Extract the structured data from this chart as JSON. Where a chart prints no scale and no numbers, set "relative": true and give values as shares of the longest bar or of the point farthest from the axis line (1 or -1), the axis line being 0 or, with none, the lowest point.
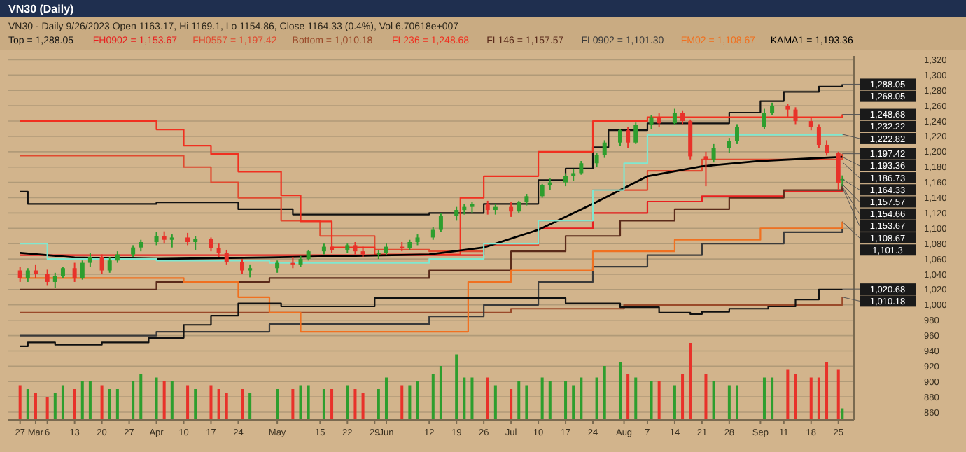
{
  "chart_data": [
    {
      "type": "candlestick",
      "title": "VN30 (Daily)",
      "subtitle": "VN30 - Daily 9/26/2023 Open 1163.17, Hi 1169.1, Lo 1154.86, Close 1164.33 (0.4%), Vol 6.70618e+007",
      "x": [
        "2023-02-27",
        "2023-03-01",
        "2023-03-03",
        "2023-03-06",
        "2023-03-08",
        "2023-03-10",
        "2023-03-13",
        "2023-03-15",
        "2023-03-17",
        "2023-03-20",
        "2023-03-22",
        "2023-03-24",
        "2023-03-28",
        "2023-03-30",
        "2023-04-03",
        "2023-04-05",
        "2023-04-07",
        "2023-04-11",
        "2023-04-13",
        "2023-04-17",
        "2023-04-19",
        "2023-04-21",
        "2023-04-25",
        "2023-04-27",
        "2023-05-04",
        "2023-05-08",
        "2023-05-10",
        "2023-05-12",
        "2023-05-16",
        "2023-05-18",
        "2023-05-22",
        "2023-05-24",
        "2023-05-26",
        "2023-05-30",
        "2023-06-01",
        "2023-06-05",
        "2023-06-07",
        "2023-06-09",
        "2023-06-13",
        "2023-06-15",
        "2023-06-19",
        "2023-06-21",
        "2023-06-23",
        "2023-06-27",
        "2023-06-29",
        "2023-07-03",
        "2023-07-05",
        "2023-07-07",
        "2023-07-11",
        "2023-07-13",
        "2023-07-17",
        "2023-07-19",
        "2023-07-21",
        "2023-07-25",
        "2023-07-27",
        "2023-07-31",
        "2023-08-02",
        "2023-08-04",
        "2023-08-08",
        "2023-08-10",
        "2023-08-14",
        "2023-08-16",
        "2023-08-18",
        "2023-08-22",
        "2023-08-24",
        "2023-08-28",
        "2023-08-30",
        "2023-09-06",
        "2023-09-08",
        "2023-09-12",
        "2023-09-14",
        "2023-09-18",
        "2023-09-20",
        "2023-09-22",
        "2023-09-25",
        "2023-09-26"
      ],
      "ohlc": [
        [
          1045,
          1050,
          1030,
          1035
        ],
        [
          1035,
          1048,
          1030,
          1045
        ],
        [
          1045,
          1052,
          1035,
          1040
        ],
        [
          1040,
          1046,
          1025,
          1030
        ],
        [
          1030,
          1042,
          1022,
          1038
        ],
        [
          1038,
          1050,
          1035,
          1048
        ],
        [
          1048,
          1055,
          1030,
          1035
        ],
        [
          1035,
          1058,
          1033,
          1055
        ],
        [
          1055,
          1068,
          1050,
          1062
        ],
        [
          1062,
          1066,
          1040,
          1045
        ],
        [
          1045,
          1062,
          1042,
          1058
        ],
        [
          1058,
          1070,
          1055,
          1066
        ],
        [
          1066,
          1078,
          1062,
          1075
        ],
        [
          1075,
          1085,
          1070,
          1082
        ],
        [
          1082,
          1095,
          1078,
          1090
        ],
        [
          1090,
          1096,
          1080,
          1085
        ],
        [
          1085,
          1092,
          1075,
          1088
        ],
        [
          1088,
          1094,
          1078,
          1082
        ],
        [
          1082,
          1090,
          1072,
          1086
        ],
        [
          1086,
          1088,
          1070,
          1074
        ],
        [
          1074,
          1080,
          1062,
          1068
        ],
        [
          1068,
          1072,
          1052,
          1056
        ],
        [
          1056,
          1060,
          1040,
          1045
        ],
        [
          1045,
          1052,
          1036,
          1048
        ],
        [
          1048,
          1058,
          1042,
          1055
        ],
        [
          1055,
          1062,
          1048,
          1052
        ],
        [
          1052,
          1064,
          1050,
          1060
        ],
        [
          1060,
          1072,
          1058,
          1070
        ],
        [
          1070,
          1080,
          1066,
          1076
        ],
        [
          1076,
          1082,
          1068,
          1072
        ],
        [
          1072,
          1080,
          1068,
          1078
        ],
        [
          1078,
          1082,
          1066,
          1070
        ],
        [
          1070,
          1076,
          1062,
          1066
        ],
        [
          1066,
          1072,
          1060,
          1068
        ],
        [
          1068,
          1080,
          1065,
          1076
        ],
        [
          1076,
          1082,
          1070,
          1074
        ],
        [
          1074,
          1085,
          1072,
          1082
        ],
        [
          1082,
          1092,
          1078,
          1088
        ],
        [
          1088,
          1102,
          1085,
          1098
        ],
        [
          1098,
          1120,
          1095,
          1116
        ],
        [
          1116,
          1128,
          1110,
          1124
        ],
        [
          1124,
          1132,
          1118,
          1128
        ],
        [
          1128,
          1135,
          1120,
          1132
        ],
        [
          1132,
          1136,
          1118,
          1124
        ],
        [
          1124,
          1132,
          1118,
          1128
        ],
        [
          1128,
          1134,
          1115,
          1122
        ],
        [
          1122,
          1136,
          1120,
          1134
        ],
        [
          1134,
          1145,
          1130,
          1142
        ],
        [
          1142,
          1158,
          1140,
          1156
        ],
        [
          1156,
          1165,
          1150,
          1160
        ],
        [
          1160,
          1172,
          1155,
          1168
        ],
        [
          1168,
          1178,
          1162,
          1172
        ],
        [
          1172,
          1188,
          1170,
          1185
        ],
        [
          1185,
          1198,
          1180,
          1196
        ],
        [
          1196,
          1215,
          1192,
          1212
        ],
        [
          1212,
          1230,
          1208,
          1228
        ],
        [
          1228,
          1232,
          1205,
          1212
        ],
        [
          1212,
          1238,
          1210,
          1235
        ],
        [
          1235,
          1248,
          1230,
          1245
        ],
        [
          1245,
          1250,
          1232,
          1237
        ],
        [
          1237,
          1256,
          1235,
          1251
        ],
        [
          1251,
          1254,
          1236,
          1240
        ],
        [
          1240,
          1242,
          1190,
          1194
        ],
        [
          1194,
          1200,
          1155,
          1190
        ],
        [
          1190,
          1210,
          1186,
          1205
        ],
        [
          1205,
          1218,
          1198,
          1214
        ],
        [
          1214,
          1236,
          1210,
          1232
        ],
        [
          1232,
          1256,
          1230,
          1251
        ],
        [
          1251,
          1264,
          1248,
          1260
        ],
        [
          1260,
          1262,
          1245,
          1255
        ],
        [
          1255,
          1258,
          1236,
          1240
        ],
        [
          1240,
          1245,
          1228,
          1232
        ],
        [
          1232,
          1236,
          1205,
          1209
        ],
        [
          1209,
          1215,
          1195,
          1198
        ],
        [
          1198,
          1200,
          1150,
          1159.7
        ],
        [
          1163.17,
          1169.1,
          1154.86,
          1164.33
        ]
      ],
      "colors": [
        "#e8322a",
        "#2e9e2e",
        "#e8322a",
        "#e8322a",
        "#2e9e2e",
        "#2e9e2e",
        "#e8322a",
        "#2e9e2e",
        "#2e9e2e",
        "#e8322a",
        "#2e9e2e",
        "#2e9e2e",
        "#2e9e2e",
        "#2e9e2e",
        "#2e9e2e",
        "#e8322a",
        "#2e9e2e",
        "#e8322a",
        "#2e9e2e",
        "#e8322a",
        "#e8322a",
        "#e8322a",
        "#e8322a",
        "#2e9e2e",
        "#2e9e2e",
        "#e8322a",
        "#2e9e2e",
        "#2e9e2e",
        "#2e9e2e",
        "#e8322a",
        "#2e9e2e",
        "#e8322a",
        "#e8322a",
        "#2e9e2e",
        "#2e9e2e",
        "#e8322a",
        "#2e9e2e",
        "#2e9e2e",
        "#2e9e2e",
        "#2e9e2e",
        "#2e9e2e",
        "#2e9e2e",
        "#2e9e2e",
        "#e8322a",
        "#2e9e2e",
        "#e8322a",
        "#2e9e2e",
        "#2e9e2e",
        "#2e9e2e",
        "#2e9e2e",
        "#2e9e2e",
        "#2e9e2e",
        "#2e9e2e",
        "#2e9e2e",
        "#2e9e2e",
        "#2e9e2e",
        "#e8322a",
        "#2e9e2e",
        "#2e9e2e",
        "#e8322a",
        "#2e9e2e",
        "#e8322a",
        "#e8322a",
        "#e8322a",
        "#2e9e2e",
        "#2e9e2e",
        "#2e9e2e",
        "#2e9e2e",
        "#2e9e2e",
        "#e8322a",
        "#e8322a",
        "#e8322a",
        "#e8322a",
        "#e8322a",
        "#e8322a",
        "#2e9e2e"
      ],
      "series": [
        {
          "name": "Top = 1,288.05",
          "type": "step",
          "color": "#111111",
          "x": [
            "2023-02-27",
            "2023-03-01",
            "2023-04-03",
            "2023-04-24",
            "2023-05-08",
            "2023-06-12",
            "2023-06-26",
            "2023-07-10",
            "2023-07-17",
            "2023-07-24",
            "2023-07-28",
            "2023-08-07",
            "2023-08-28",
            "2023-09-05",
            "2023-09-11",
            "2023-09-20",
            "2023-09-26"
          ],
          "values": [
            1148,
            1132,
            1134,
            1125,
            1118,
            1120,
            1132,
            1163,
            1178,
            1206,
            1228,
            1237,
            1251,
            1266,
            1278,
            1285,
            1288.05
          ]
        },
        {
          "name": "FH0902 = 1,153.67",
          "type": "step",
          "color": "#e82020",
          "x": [
            "2023-02-27",
            "2023-04-03",
            "2023-06-12",
            "2023-06-26",
            "2023-07-10",
            "2023-07-24",
            "2023-08-07",
            "2023-08-21",
            "2023-09-11",
            "2023-09-26"
          ],
          "values": [
            1065,
            1065,
            1065,
            1080,
            1100,
            1120,
            1135,
            1142,
            1148,
            1153.67
          ]
        },
        {
          "name": "FH0557 = 1,197.42",
          "type": "step",
          "color": "#e04a30",
          "x": [
            "2023-02-27",
            "2023-04-01",
            "2023-04-10",
            "2023-04-17",
            "2023-04-24",
            "2023-05-05",
            "2023-05-15",
            "2023-05-29",
            "2023-06-12",
            "2023-06-26",
            "2023-07-10",
            "2023-07-24",
            "2023-08-07",
            "2023-08-21",
            "2023-09-26"
          ],
          "values": [
            1195,
            1195,
            1180,
            1160,
            1140,
            1110,
            1090,
            1072,
            1070,
            1078,
            1110,
            1150,
            1175,
            1190,
            1197.42
          ]
        },
        {
          "name": "Bottom = 1,010.18",
          "type": "step",
          "color": "#9a4a2a",
          "x": [
            "2023-02-27",
            "2023-06-21",
            "2023-07-03",
            "2023-08-01",
            "2023-09-20",
            "2023-09-26"
          ],
          "values": [
            990,
            990,
            995,
            1000,
            1000,
            1010.18
          ]
        },
        {
          "name": "FL236 = 1,248.68",
          "type": "step",
          "color": "#f03020",
          "x": [
            "2023-02-27",
            "2023-04-03",
            "2023-04-10",
            "2023-04-17",
            "2023-04-24",
            "2023-05-05",
            "2023-05-10",
            "2023-05-18",
            "2023-05-29",
            "2023-06-20",
            "2023-06-26",
            "2023-07-10",
            "2023-07-24",
            "2023-08-07",
            "2023-09-26"
          ],
          "values": [
            1240,
            1229,
            1208,
            1197,
            1174,
            1143,
            1109,
            1075,
            1066,
            1140,
            1168,
            1200,
            1240,
            1245,
            1248.68
          ]
        },
        {
          "name": "FL146 = 1,157.57",
          "type": "step",
          "color": "#5a2a1a",
          "x": [
            "2023-02-27",
            "2023-04-03",
            "2023-05-02",
            "2023-06-12",
            "2023-07-03",
            "2023-07-17",
            "2023-07-31",
            "2023-08-14",
            "2023-08-28",
            "2023-09-11",
            "2023-09-26"
          ],
          "values": [
            1020,
            1030,
            1035,
            1045,
            1070,
            1090,
            1110,
            1125,
            1140,
            1150,
            1157.57
          ]
        },
        {
          "name": "FL0902 = 1,101.30",
          "type": "step",
          "color": "#3a3a3a",
          "x": [
            "2023-02-27",
            "2023-04-03",
            "2023-05-02",
            "2023-06-12",
            "2023-06-26",
            "2023-07-10",
            "2023-07-24",
            "2023-08-07",
            "2023-08-21",
            "2023-09-11",
            "2023-09-26"
          ],
          "values": [
            960,
            965,
            975,
            985,
            1000,
            1030,
            1050,
            1065,
            1080,
            1095,
            1101.3
          ]
        },
        {
          "name": "FM02 = 1,108.67",
          "type": "step",
          "color": "#f07020",
          "x": [
            "2023-02-27",
            "2023-04-10",
            "2023-04-24",
            "2023-05-02",
            "2023-05-10",
            "2023-06-19",
            "2023-06-22",
            "2023-07-03",
            "2023-07-24",
            "2023-08-14",
            "2023-09-05",
            "2023-09-26"
          ],
          "values": [
            1035,
            1030,
            1010,
            990,
            965,
            965,
            1030,
            1045,
            1070,
            1085,
            1100,
            1108.67
          ]
        },
        {
          "name": "KAMA1 = 1,193.36",
          "type": "line",
          "color": "#000000",
          "x": [
            "2023-02-27",
            "2023-03-13",
            "2023-04-03",
            "2023-05-02",
            "2023-06-12",
            "2023-06-26",
            "2023-07-10",
            "2023-07-24",
            "2023-08-07",
            "2023-08-21",
            "2023-09-05",
            "2023-09-26"
          ],
          "values": [
            1068,
            1062,
            1060,
            1062,
            1066,
            1075,
            1098,
            1132,
            1168,
            1181,
            1188,
            1193.36
          ]
        },
        {
          "type": "step",
          "color": "#101010",
          "x": [
            "2023-02-27",
            "2023-03-01",
            "2023-03-08",
            "2023-03-20",
            "2023-04-01",
            "2023-04-10",
            "2023-04-17",
            "2023-04-24",
            "2023-05-05",
            "2023-05-29",
            "2023-07-03",
            "2023-07-17",
            "2023-07-31",
            "2023-08-10",
            "2023-08-18",
            "2023-08-21",
            "2023-08-28",
            "2023-09-07",
            "2023-09-14",
            "2023-09-20",
            "2023-09-26"
          ],
          "values": [
            946,
            951,
            948,
            951,
            957,
            974,
            986,
            1002,
            998,
            1009,
            1009,
            1002,
            997,
            990,
            988,
            991,
            995,
            998,
            1007,
            1020,
            1020.68
          ]
        },
        {
          "type": "step",
          "color": "#7fe8d0",
          "x": [
            "2023-02-27",
            "2023-03-06",
            "2023-04-03",
            "2023-05-02",
            "2023-06-12",
            "2023-06-26",
            "2023-07-10",
            "2023-07-24",
            "2023-08-01",
            "2023-08-07",
            "2023-09-26"
          ],
          "values": [
            1080,
            1060,
            1058,
            1055,
            1060,
            1080,
            1110,
            1150,
            1185,
            1222,
            1222.82
          ]
        }
      ],
      "annotations": [
        {
          "text": "1,288.05",
          "x": "2023-09-26",
          "y": 1288.05
        },
        "1,268.05",
        {
          "text": "1,248.68",
          "x": "2023-09-26",
          "y": 1248.68
        },
        "1,232.22",
        {
          "text": "1,222.82",
          "x": "2023-09-26",
          "y": 1222.82
        },
        {
          "text": "1,197.42",
          "x": "2023-09-26",
          "y": 1197.42
        },
        {
          "text": "1,193.36",
          "x": "2023-09-26",
          "y": 1193.36
        },
        {
          "text": "1,186.73",
          "x": "2023-09-26",
          "y": 1186.73
        },
        {
          "text": "1,164.33",
          "x": "2023-09-26",
          "y": 1164.33
        },
        {
          "text": "1,157.57",
          "x": "2023-09-26",
          "y": 1157.57
        },
        {
          "text": "1,154.66",
          "x": "2023-09-26",
          "y": 1154.66
        },
        {
          "text": "1,153.67",
          "x": "2023-09-26",
          "y": 1153.67
        },
        {
          "text": "1,108.67",
          "x": "2023-09-26",
          "y": 1108.67
        },
        "1,101.3",
        {
          "text": "1,020.68",
          "x": "2023-09-26",
          "y": 1020.68
        },
        {
          "text": "1,010.18",
          "x": "2023-09-26",
          "y": 1010.18
        }
      ],
      "xlim": [
        "2023-02-24",
        "2023-09-29"
      ],
      "xticks": [
        {
          "value": "2023-02-27",
          "label": "27"
        },
        {
          "value": "2023-03-03",
          "label": "Mar"
        },
        {
          "value": "2023-03-06",
          "label": "6"
        },
        {
          "value": "2023-03-13",
          "label": "13"
        },
        {
          "value": "2023-03-20",
          "label": "20"
        },
        {
          "value": "2023-03-27",
          "label": "27"
        },
        {
          "value": "2023-04-03",
          "label": "Apr"
        },
        {
          "value": "2023-04-10",
          "label": "10"
        },
        {
          "value": "2023-04-17",
          "label": "17"
        },
        {
          "value": "2023-04-24",
          "label": "24"
        },
        {
          "value": "2023-05-04",
          "label": "May"
        },
        {
          "value": "2023-05-15",
          "label": "15"
        },
        {
          "value": "2023-05-22",
          "label": "22"
        },
        {
          "value": "2023-05-29",
          "label": "29"
        },
        {
          "value": "2023-06-01",
          "label": "Jun"
        },
        {
          "value": "2023-06-12",
          "label": "12"
        },
        {
          "value": "2023-06-19",
          "label": "19"
        },
        {
          "value": "2023-06-26",
          "label": "26"
        },
        {
          "value": "2023-07-03",
          "label": "Jul"
        },
        {
          "value": "2023-07-10",
          "label": "10"
        },
        {
          "value": "2023-07-17",
          "label": "17"
        },
        {
          "value": "2023-07-24",
          "label": "24"
        },
        {
          "value": "2023-08-01",
          "label": "Aug"
        },
        {
          "value": "2023-08-07",
          "label": "7"
        },
        {
          "value": "2023-08-14",
          "label": "14"
        },
        {
          "value": "2023-08-21",
          "label": "21"
        },
        {
          "value": "2023-08-28",
          "label": "28"
        },
        {
          "value": "2023-09-05",
          "label": "Sep"
        },
        {
          "value": "2023-09-11",
          "label": "11"
        },
        {
          "value": "2023-09-18",
          "label": "18"
        },
        {
          "value": "2023-09-25",
          "label": "25"
        }
      ],
      "ylim": [
        850,
        1325
      ],
      "yticks": [
        860,
        880,
        900,
        920,
        940,
        960,
        980,
        {
          "value": 1000,
          "label": "1,000"
        },
        {
          "value": 1020,
          "label": "1,020"
        },
        {
          "value": 1040,
          "label": "1,040"
        },
        {
          "value": 1060,
          "label": "1,060"
        },
        {
          "value": 1080,
          "label": "1,080"
        },
        {
          "value": 1100,
          "label": "1,100"
        },
        {
          "value": 1120,
          "label": "1,120"
        },
        {
          "value": 1140,
          "label": "1,140"
        },
        {
          "value": 1160,
          "label": "1,160"
        },
        {
          "value": 1180,
          "label": "1,180"
        },
        {
          "value": 1200,
          "label": "1,200"
        },
        {
          "value": 1220,
          "label": "1,220"
        },
        {
          "value": 1240,
          "label": "1,240"
        },
        {
          "value": 1260,
          "label": "1,260"
        },
        {
          "value": 1280,
          "label": "1,280"
        },
        {
          "value": 1300,
          "label": "1,300"
        },
        {
          "value": 1320,
          "label": "1,320"
        }
      ],
      "grid": "y"
    },
    {
      "type": "bar",
      "relative": true,
      "xlim": [
        "2023-02-24",
        "2023-09-29"
      ],
      "x": [
        "2023-02-27",
        "2023-03-01",
        "2023-03-03",
        "2023-03-06",
        "2023-03-08",
        "2023-03-10",
        "2023-03-13",
        "2023-03-15",
        "2023-03-17",
        "2023-03-20",
        "2023-03-22",
        "2023-03-24",
        "2023-03-28",
        "2023-03-30",
        "2023-04-03",
        "2023-04-05",
        "2023-04-07",
        "2023-04-11",
        "2023-04-13",
        "2023-04-17",
        "2023-04-19",
        "2023-04-21",
        "2023-04-25",
        "2023-04-27",
        "2023-05-04",
        "2023-05-08",
        "2023-05-10",
        "2023-05-12",
        "2023-05-16",
        "2023-05-18",
        "2023-05-22",
        "2023-05-24",
        "2023-05-26",
        "2023-05-30",
        "2023-06-01",
        "2023-06-05",
        "2023-06-07",
        "2023-06-09",
        "2023-06-13",
        "2023-06-15",
        "2023-06-19",
        "2023-06-21",
        "2023-06-23",
        "2023-06-27",
        "2023-06-29",
        "2023-07-03",
        "2023-07-05",
        "2023-07-07",
        "2023-07-11",
        "2023-07-13",
        "2023-07-17",
        "2023-07-19",
        "2023-07-21",
        "2023-07-25",
        "2023-07-27",
        "2023-07-31",
        "2023-08-02",
        "2023-08-04",
        "2023-08-08",
        "2023-08-10",
        "2023-08-14",
        "2023-08-16",
        "2023-08-18",
        "2023-08-22",
        "2023-08-24",
        "2023-08-28",
        "2023-08-30",
        "2023-09-06",
        "2023-09-08",
        "2023-09-12",
        "2023-09-14",
        "2023-09-18",
        "2023-09-20",
        "2023-09-22",
        "2023-09-25",
        "2023-09-26"
      ],
      "values": [
        0.45,
        0.4,
        0.35,
        0.3,
        0.35,
        0.45,
        0.4,
        0.5,
        0.5,
        0.45,
        0.4,
        0.4,
        0.5,
        0.6,
        0.55,
        0.5,
        0.5,
        0.45,
        0.4,
        0.45,
        0.4,
        0.35,
        0.4,
        0.35,
        0.4,
        0.4,
        0.45,
        0.45,
        0.4,
        0.4,
        0.45,
        0.4,
        0.35,
        0.4,
        0.55,
        0.45,
        0.45,
        0.5,
        0.6,
        0.7,
        0.85,
        0.55,
        0.55,
        0.55,
        0.45,
        0.4,
        0.5,
        0.45,
        0.55,
        0.5,
        0.5,
        0.45,
        0.55,
        0.55,
        0.7,
        0.75,
        0.6,
        0.55,
        0.5,
        0.5,
        0.45,
        0.6,
        1.0,
        0.6,
        0.5,
        0.45,
        0.45,
        0.55,
        0.55,
        0.65,
        0.6,
        0.55,
        0.55,
        0.75,
        0.65,
        0.15
      ],
      "colors": [
        "#e8322a",
        "#2e9e2e",
        "#e8322a",
        "#e8322a",
        "#2e9e2e",
        "#2e9e2e",
        "#e8322a",
        "#2e9e2e",
        "#2e9e2e",
        "#e8322a",
        "#2e9e2e",
        "#2e9e2e",
        "#2e9e2e",
        "#2e9e2e",
        "#2e9e2e",
        "#e8322a",
        "#2e9e2e",
        "#e8322a",
        "#2e9e2e",
        "#e8322a",
        "#e8322a",
        "#e8322a",
        "#e8322a",
        "#2e9e2e",
        "#2e9e2e",
        "#e8322a",
        "#2e9e2e",
        "#2e9e2e",
        "#2e9e2e",
        "#e8322a",
        "#2e9e2e",
        "#e8322a",
        "#e8322a",
        "#2e9e2e",
        "#2e9e2e",
        "#e8322a",
        "#2e9e2e",
        "#2e9e2e",
        "#2e9e2e",
        "#2e9e2e",
        "#2e9e2e",
        "#2e9e2e",
        "#2e9e2e",
        "#e8322a",
        "#2e9e2e",
        "#e8322a",
        "#2e9e2e",
        "#2e9e2e",
        "#2e9e2e",
        "#2e9e2e",
        "#2e9e2e",
        "#2e9e2e",
        "#2e9e2e",
        "#2e9e2e",
        "#2e9e2e",
        "#2e9e2e",
        "#e8322a",
        "#2e9e2e",
        "#2e9e2e",
        "#e8322a",
        "#2e9e2e",
        "#e8322a",
        "#e8322a",
        "#e8322a",
        "#2e9e2e",
        "#2e9e2e",
        "#2e9e2e",
        "#2e9e2e",
        "#2e9e2e",
        "#e8322a",
        "#e8322a",
        "#e8322a",
        "#e8322a",
        "#e8322a",
        "#e8322a",
        "#2e9e2e"
      ]
    }
  ]
}
